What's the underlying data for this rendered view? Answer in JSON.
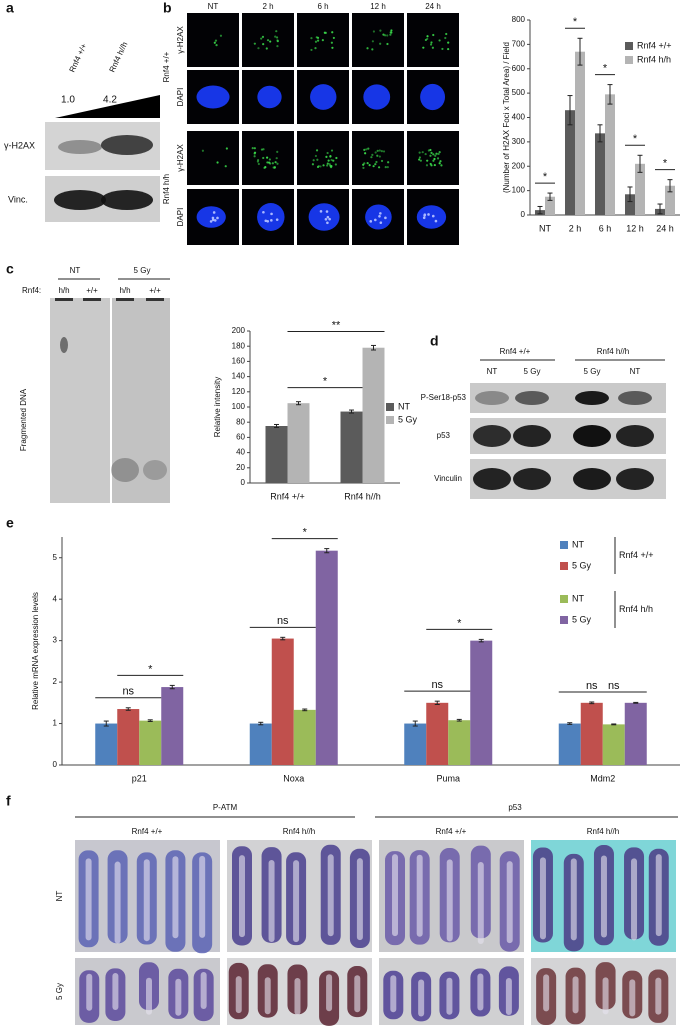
{
  "panels": {
    "a": {
      "label": "a",
      "genotypes": [
        "Rnf4 +/+",
        "Rnf4 h//h"
      ],
      "ratios": [
        "1.0",
        "4.2"
      ],
      "rows": [
        "γ-H2AX",
        "Vinc."
      ]
    },
    "b": {
      "label": "b",
      "columns": [
        "NT",
        "2 h",
        "6 h",
        "12 h",
        "24 h"
      ],
      "genotypes": [
        "Rnf4 +/+",
        "Rnf4 h/h"
      ],
      "stains": [
        "γ-H2AX",
        "DAPI",
        "γ-H2AX",
        "DAPI"
      ]
    },
    "c": {
      "label": "c",
      "groups": [
        "NT",
        "5 Gy"
      ],
      "lane_title": "Rnf4:",
      "lanes": [
        "h/h",
        "+/+",
        "h/h",
        "+/+"
      ],
      "side": "Fragmented DNA"
    },
    "d": {
      "label": "d",
      "groups": [
        "Rnf4 +/+",
        "Rnf4 h//h"
      ],
      "lanes": [
        "NT",
        "5 Gy",
        "5 Gy",
        "NT"
      ],
      "rows": [
        "P-Ser18-p53",
        "p53",
        "Vinculin"
      ]
    },
    "e": {
      "label": "e"
    },
    "f": {
      "label": "f",
      "stains": [
        "P-ATM",
        "p53"
      ],
      "genotypes": [
        "Rnf4 +/+",
        "Rnf4 h//h",
        "Rnf4 +/+",
        "Rnf4 h//h"
      ],
      "rows": [
        "NT",
        "5 Gy"
      ]
    }
  },
  "chart_data": [
    {
      "type": "bar",
      "y_label": "(Number of H2AX Foci x Total Area) / Field",
      "categories": [
        "NT",
        "2 h",
        "6 h",
        "12 h",
        "24 h"
      ],
      "series": [
        {
          "name": "Rnf4 +/+",
          "color": "#5b5b5b",
          "values": [
            20,
            430,
            335,
            85,
            25
          ],
          "errors": [
            15,
            60,
            35,
            30,
            20
          ]
        },
        {
          "name": "Rnf4 h/h",
          "color": "#b4b4b4",
          "values": [
            75,
            670,
            495,
            210,
            120
          ],
          "errors": [
            15,
            55,
            40,
            35,
            25
          ]
        }
      ],
      "ylim": [
        0,
        800
      ],
      "yticks": [
        0,
        100,
        200,
        300,
        400,
        500,
        600,
        700,
        800
      ],
      "annotations": [
        {
          "text": "*",
          "from": [
            0,
            0
          ],
          "to": [
            0,
            1
          ]
        },
        {
          "text": "*",
          "from": [
            1,
            0
          ],
          "to": [
            1,
            1
          ]
        },
        {
          "text": "*",
          "from": [
            2,
            0
          ],
          "to": [
            2,
            1
          ]
        },
        {
          "text": "*",
          "from": [
            3,
            0
          ],
          "to": [
            3,
            1
          ]
        },
        {
          "text": "*",
          "from": [
            4,
            0
          ],
          "to": [
            4,
            1
          ]
        }
      ]
    },
    {
      "type": "bar",
      "y_label": "Relative intensity",
      "categories": [
        "Rnf4 +/+",
        "Rnf4 h//h"
      ],
      "series": [
        {
          "name": "NT",
          "color": "#5b5b5b",
          "values": [
            75,
            94
          ],
          "errors": [
            2,
            2
          ]
        },
        {
          "name": "5 Gy",
          "color": "#b4b4b4",
          "values": [
            105,
            178
          ],
          "errors": [
            2,
            3
          ]
        }
      ],
      "ylim": [
        0,
        200
      ],
      "yticks": [
        0,
        20,
        40,
        60,
        80,
        100,
        120,
        140,
        160,
        180,
        200
      ],
      "annotations": [
        {
          "text": "*",
          "from": [
            0,
            1
          ],
          "to": [
            1,
            0
          ]
        },
        {
          "text": "**",
          "from": [
            0,
            1
          ],
          "to": [
            1,
            1
          ]
        }
      ]
    },
    {
      "type": "bar",
      "y_label": "Relative mRNA expression levels",
      "categories": [
        "p21",
        "Noxa",
        "Puma",
        "Mdm2"
      ],
      "series": [
        {
          "name": "NT",
          "color": "#4f81bd",
          "values": [
            1,
            1,
            1,
            1
          ],
          "errors": [
            0.06,
            0.03,
            0.06,
            0.02
          ]
        },
        {
          "name": "5 Gy",
          "color": "#c0504d",
          "values": [
            1.35,
            3.05,
            1.5,
            1.5
          ],
          "errors": [
            0.03,
            0.03,
            0.04,
            0.02
          ]
        },
        {
          "name": "NT",
          "color": "#9bbb59",
          "values": [
            1.07,
            1.33,
            1.08,
            0.98
          ],
          "errors": [
            0.02,
            0.02,
            0.02,
            0.01
          ]
        },
        {
          "name": "5 Gy",
          "color": "#8064a2",
          "values": [
            1.88,
            5.17,
            3.0,
            1.5
          ],
          "errors": [
            0.04,
            0.05,
            0.03,
            0.01
          ]
        }
      ],
      "legend_groups": [
        "Rnf4 +/+",
        "Rnf4 h/h"
      ],
      "ylim": [
        0,
        5.5
      ],
      "yticks": [
        0,
        1,
        2,
        3,
        4,
        5
      ],
      "annotations": [
        {
          "text": "ns",
          "from": [
            0,
            0
          ],
          "to": [
            0,
            2
          ]
        },
        {
          "text": "*",
          "from": [
            0,
            1
          ],
          "to": [
            0,
            3
          ]
        },
        {
          "text": "ns",
          "from": [
            1,
            0
          ],
          "to": [
            1,
            2
          ]
        },
        {
          "text": "*",
          "from": [
            1,
            1
          ],
          "to": [
            1,
            3
          ]
        },
        {
          "text": "ns",
          "from": [
            2,
            0
          ],
          "to": [
            2,
            2
          ]
        },
        {
          "text": "*",
          "from": [
            2,
            1
          ],
          "to": [
            2,
            3
          ]
        },
        {
          "text": "ns",
          "from": [
            3,
            0
          ],
          "to": [
            3,
            2
          ]
        },
        {
          "text": "ns",
          "from": [
            3,
            1
          ],
          "to": [
            3,
            3
          ]
        }
      ]
    }
  ]
}
